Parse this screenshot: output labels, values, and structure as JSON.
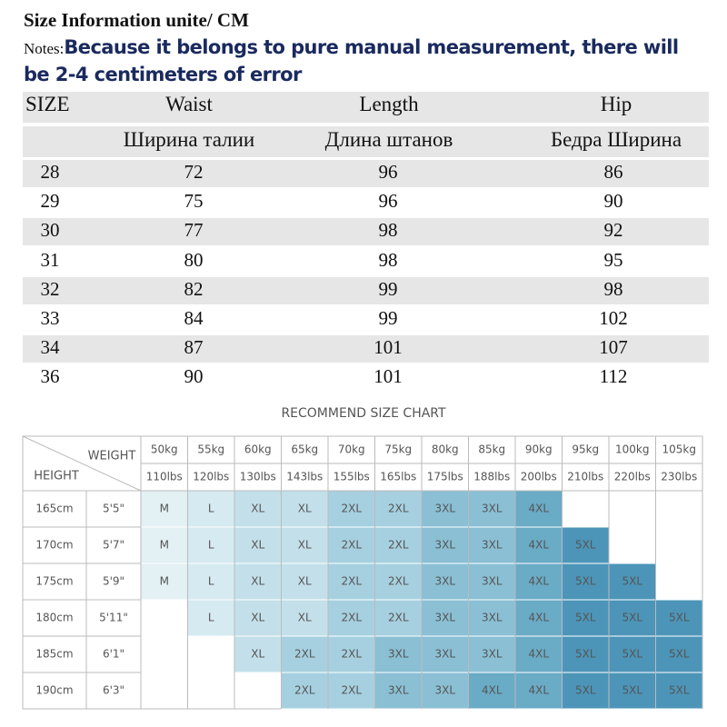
{
  "title": "Size Information unite/ CM",
  "notes": {
    "label": "Notes:",
    "text": "Because it belongs to pure manual measurement, there will be 2-4 centimeters of error"
  },
  "size_table": {
    "header": [
      "SIZE",
      "Waist",
      "Length",
      "Hip"
    ],
    "subheader": [
      "Ширина талии",
      "Длина штанов",
      "Бедра Ширина"
    ],
    "rows": [
      [
        28,
        72,
        96,
        86
      ],
      [
        29,
        75,
        96,
        90
      ],
      [
        30,
        77,
        98,
        92
      ],
      [
        31,
        80,
        98,
        95
      ],
      [
        32,
        82,
        99,
        98
      ],
      [
        33,
        84,
        99,
        102
      ],
      [
        34,
        87,
        101,
        107
      ],
      [
        36,
        90,
        101,
        112
      ]
    ]
  },
  "recommend_chart": {
    "title": "RECOMMEND SIZE CHART",
    "weight_label": "WEIGHT",
    "height_label": "HEIGHT",
    "weights_kg": [
      "50kg",
      "55kg",
      "60kg",
      "65kg",
      "70kg",
      "75kg",
      "80kg",
      "85kg",
      "90kg",
      "95kg",
      "100kg",
      "105kg"
    ],
    "weights_lbs": [
      "110lbs",
      "120lbs",
      "130lbs",
      "143lbs",
      "155lbs",
      "165lbs",
      "175lbs",
      "188lbs",
      "200lbs",
      "210lbs",
      "220lbs",
      "230lbs"
    ],
    "heights_cm": [
      "165cm",
      "170cm",
      "175cm",
      "180cm",
      "185cm",
      "190cm"
    ],
    "heights_ft": [
      "5'5\"",
      "5'7\"",
      "5'9\"",
      "5'11\"",
      "6'1\"",
      "6'3\""
    ],
    "cells": [
      [
        "M",
        "L",
        "XL",
        "XL",
        "2XL",
        "2XL",
        "3XL",
        "3XL",
        "4XL",
        null,
        null,
        null
      ],
      [
        "M",
        "L",
        "XL",
        "XL",
        "2XL",
        "2XL",
        "3XL",
        "3XL",
        "4XL",
        "5XL",
        null,
        null
      ],
      [
        "M",
        "L",
        "XL",
        "XL",
        "2XL",
        "2XL",
        "3XL",
        "3XL",
        "4XL",
        "5XL",
        "5XL",
        null
      ],
      [
        null,
        "L",
        "XL",
        "XL",
        "2XL",
        "2XL",
        "3XL",
        "3XL",
        "4XL",
        "5XL",
        "5XL",
        "5XL"
      ],
      [
        null,
        null,
        "XL",
        "2XL",
        "2XL",
        "3XL",
        "3XL",
        "3XL",
        "4XL",
        "5XL",
        "5XL",
        "5XL"
      ],
      [
        null,
        null,
        null,
        "2XL",
        "2XL",
        "3XL",
        "3XL",
        "4XL",
        "4XL",
        "5XL",
        "5XL",
        "5XL"
      ]
    ]
  }
}
